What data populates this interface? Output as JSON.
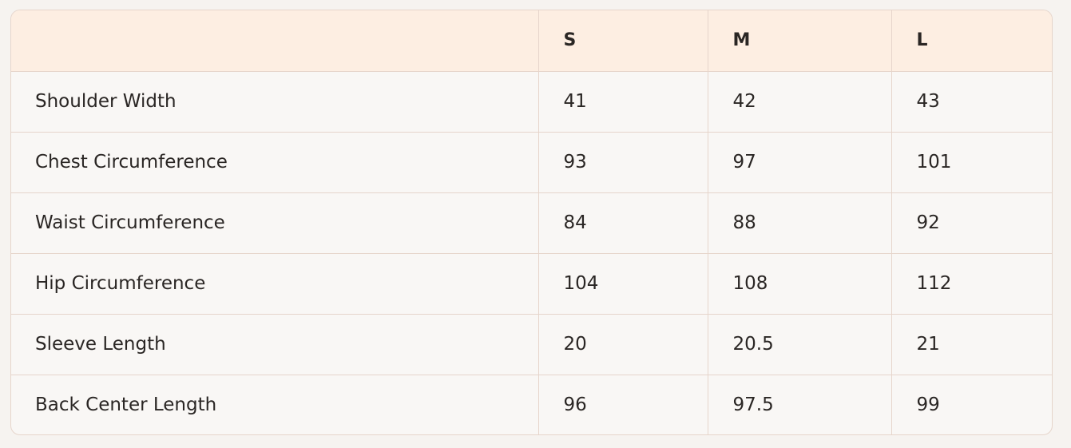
{
  "table": {
    "headers": [
      "",
      "S",
      "M",
      "L"
    ],
    "rows": [
      [
        "Shoulder Width",
        "41",
        "42",
        "43"
      ],
      [
        "Chest Circumference",
        "93",
        "97",
        "101"
      ],
      [
        "Waist Circumference",
        "84",
        "88",
        "92"
      ],
      [
        "Hip Circumference",
        "104",
        "108",
        "112"
      ],
      [
        "Sleeve Length",
        "20",
        "20.5",
        "21"
      ],
      [
        "Back Center Length",
        "96",
        "97.5",
        "99"
      ]
    ]
  },
  "colors": {
    "header_bg": "#fdeee2",
    "row_bg": "#f9f7f5",
    "border": "#e6d5cb",
    "page_bg": "#f6f3f0"
  }
}
